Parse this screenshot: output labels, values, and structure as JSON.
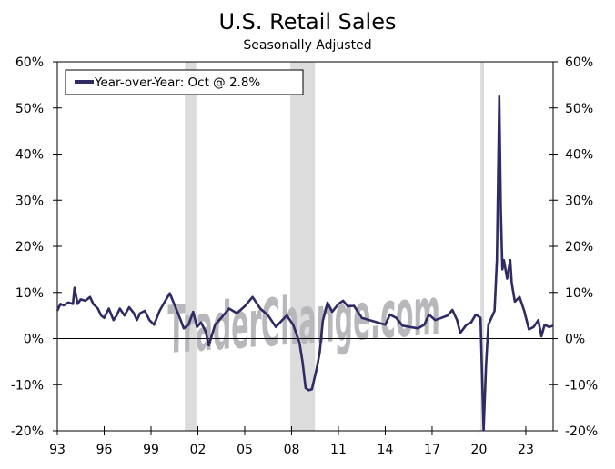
{
  "chart_data": {
    "type": "line",
    "title": "U.S. Retail Sales",
    "subtitle": "Seasonally Adjusted",
    "xlabel": "",
    "ylabel": "",
    "ylim": [
      -20,
      60
    ],
    "xlim": [
      1993,
      2024.75
    ],
    "y_ticks": [
      -20,
      -10,
      0,
      10,
      20,
      30,
      40,
      50,
      60
    ],
    "y_tick_labels": [
      "-20%",
      "-10%",
      "0%",
      "10%",
      "20%",
      "30%",
      "40%",
      "50%",
      "60%"
    ],
    "x_ticks": [
      1993,
      1996,
      1999,
      2002,
      2005,
      2008,
      2011,
      2014,
      2017,
      2020,
      2023
    ],
    "x_tick_labels": [
      "93",
      "96",
      "99",
      "02",
      "05",
      "08",
      "11",
      "14",
      "17",
      "20",
      "23"
    ],
    "legend": {
      "placement": "top-left",
      "entries": [
        "Year-over-Year: Oct @ 2.8%"
      ]
    },
    "series_color": "#2e2a63",
    "recession_color": "#dcdcdc",
    "recessions": [
      [
        2001.17,
        2001.9
      ],
      [
        2007.92,
        2009.5
      ],
      [
        2020.1,
        2020.33
      ]
    ],
    "watermark": "TraderChange.com",
    "series": [
      {
        "name": "Year-over-Year",
        "x": [
          1993.0,
          1993.2,
          1993.4,
          1993.7,
          1994.0,
          1994.1,
          1994.3,
          1994.5,
          1994.8,
          1995.1,
          1995.3,
          1995.6,
          1995.8,
          1996.0,
          1996.3,
          1996.6,
          1996.8,
          1997.0,
          1997.3,
          1997.6,
          1997.9,
          1998.1,
          1998.3,
          1998.6,
          1998.9,
          1999.2,
          1999.55,
          1999.8,
          2000.2,
          2000.6,
          2000.9,
          2001.1,
          2001.4,
          2001.7,
          2001.95,
          2002.2,
          2002.5,
          2002.7,
          2003.1,
          2003.5,
          2004.0,
          2004.5,
          2005.0,
          2005.5,
          2006.0,
          2006.5,
          2007.0,
          2007.4,
          2007.7,
          2008.1,
          2008.5,
          2008.7,
          2008.9,
          2009.1,
          2009.3,
          2009.6,
          2009.8,
          2010.0,
          2010.3,
          2010.6,
          2011.0,
          2011.3,
          2011.6,
          2012.0,
          2012.5,
          2013.0,
          2013.5,
          2014.0,
          2014.3,
          2014.7,
          2015.1,
          2015.6,
          2016.1,
          2016.5,
          2016.8,
          2017.2,
          2017.6,
          2018.0,
          2018.3,
          2018.6,
          2018.8,
          2019.2,
          2019.5,
          2019.8,
          2020.1,
          2020.2,
          2020.3,
          2020.45,
          2020.6,
          2020.8,
          2021.0,
          2021.15,
          2021.3,
          2021.4,
          2021.5,
          2021.6,
          2021.8,
          2022.0,
          2022.1,
          2022.3,
          2022.6,
          2022.9,
          2023.2,
          2023.5,
          2023.8,
          2024.0,
          2024.2,
          2024.5,
          2024.75
        ],
        "y": [
          6,
          7.5,
          7.2,
          7.8,
          7.5,
          11,
          7.5,
          8.5,
          8.2,
          9,
          7.5,
          6.5,
          5,
          4.5,
          6.5,
          4,
          5,
          6.5,
          5,
          6.8,
          5.5,
          4,
          5.5,
          6,
          4,
          3,
          6,
          7.5,
          9.8,
          6.5,
          4,
          2.2,
          3,
          5.8,
          2.5,
          3.5,
          1.5,
          -1.5,
          3,
          4.5,
          6.5,
          5.5,
          7,
          9,
          6.5,
          5,
          2.5,
          4,
          5,
          3,
          -0.8,
          -5,
          -10.7,
          -11.2,
          -11,
          -6.7,
          -3,
          3.8,
          7.8,
          5.8,
          7.5,
          8.2,
          7,
          7.1,
          4.5,
          4,
          3.5,
          3,
          5.2,
          4.5,
          2.8,
          2.5,
          2.2,
          3,
          5.2,
          4,
          4.5,
          5,
          6.2,
          4,
          1.2,
          3,
          3.5,
          5.2,
          4.5,
          -8,
          -19.9,
          -6,
          3,
          4.5,
          6,
          17,
          52.5,
          28,
          15,
          17,
          13,
          17,
          12,
          8,
          9,
          6,
          2,
          2.5,
          4,
          0.5,
          3,
          2.5,
          2.8
        ]
      }
    ]
  }
}
